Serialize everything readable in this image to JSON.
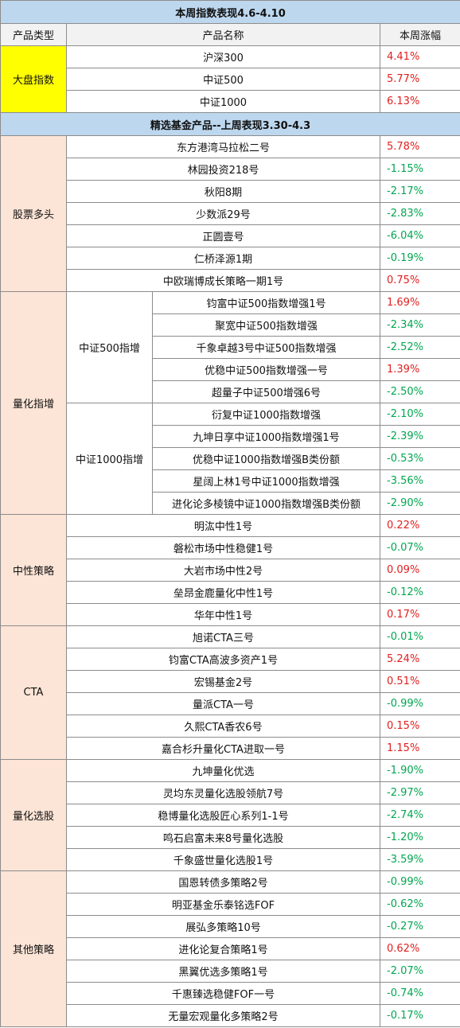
{
  "section1": {
    "title": "本周指数表现4.6-4.10",
    "headers": {
      "type": "产品类型",
      "name": "产品名称",
      "change": "本周涨幅"
    },
    "category": "大盘指数",
    "rows": [
      {
        "name": "沪深300",
        "change": "4.41%",
        "dir": "up"
      },
      {
        "name": "中证500",
        "change": "5.77%",
        "dir": "up"
      },
      {
        "name": "中证1000",
        "change": "6.13%",
        "dir": "up"
      }
    ]
  },
  "section2": {
    "title": "精选基金产品--上周表现3.30-4.3",
    "stock_long": {
      "category": "股票多头",
      "rows": [
        {
          "name": "东方港湾马拉松二号",
          "change": "5.78%",
          "dir": "up"
        },
        {
          "name": "林园投资218号",
          "change": "-1.15%",
          "dir": "down"
        },
        {
          "name": "秋阳8期",
          "change": "-2.17%",
          "dir": "down"
        },
        {
          "name": "少数派29号",
          "change": "-2.83%",
          "dir": "down"
        },
        {
          "name": "正圆壹号",
          "change": "-6.04%",
          "dir": "down"
        },
        {
          "name": "仁桥泽源1期",
          "change": "-0.19%",
          "dir": "down"
        },
        {
          "name": "中欧瑞博成长策略一期1号",
          "change": "0.75%",
          "dir": "up"
        }
      ]
    },
    "quant_index": {
      "category": "量化指增",
      "csi500": {
        "label": "中证500指增",
        "rows": [
          {
            "name": "钧富中证500指数增强1号",
            "change": "1.69%",
            "dir": "up"
          },
          {
            "name": "聚宽中证500指数增强",
            "change": "-2.34%",
            "dir": "down"
          },
          {
            "name": "千象卓越3号中证500指数增强",
            "change": "-2.52%",
            "dir": "down"
          },
          {
            "name": "优稳中证500指数增强一号",
            "change": "1.39%",
            "dir": "up"
          },
          {
            "name": "超量子中证500增强6号",
            "change": "-2.50%",
            "dir": "down"
          }
        ]
      },
      "csi1000": {
        "label": "中证1000指增",
        "rows": [
          {
            "name": "衍复中证1000指数增强",
            "change": "-2.10%",
            "dir": "down"
          },
          {
            "name": "九坤日享中证1000指数增强1号",
            "change": "-2.39%",
            "dir": "down"
          },
          {
            "name": "优稳中证1000指数增强B类份额",
            "change": "-0.53%",
            "dir": "down"
          },
          {
            "name": "星阔上林1号中证1000指数增强",
            "change": "-3.56%",
            "dir": "down"
          },
          {
            "name": "进化论多棱镜中证1000指数增强B类份额",
            "change": "-2.90%",
            "dir": "down"
          }
        ]
      }
    },
    "market_neutral": {
      "category": "中性策略",
      "rows": [
        {
          "name": "明汯中性1号",
          "change": "0.22%",
          "dir": "up"
        },
        {
          "name": "磐松市场中性稳健1号",
          "change": "-0.07%",
          "dir": "down"
        },
        {
          "name": "大岩市场中性2号",
          "change": "0.09%",
          "dir": "up"
        },
        {
          "name": "垒昂金鹿量化中性1号",
          "change": "-0.12%",
          "dir": "down"
        },
        {
          "name": "华年中性1号",
          "change": "0.17%",
          "dir": "up"
        }
      ]
    },
    "cta": {
      "category": "CTA",
      "rows": [
        {
          "name": "旭诺CTA三号",
          "change": "-0.01%",
          "dir": "down"
        },
        {
          "name": "钧富CTA高波多资产1号",
          "change": "5.24%",
          "dir": "up"
        },
        {
          "name": "宏锡基金2号",
          "change": "0.51%",
          "dir": "up"
        },
        {
          "name": "量派CTA一号",
          "change": "-0.99%",
          "dir": "down"
        },
        {
          "name": "久熙CTA香农6号",
          "change": "0.15%",
          "dir": "up"
        },
        {
          "name": "嘉合杉升量化CTA进取一号",
          "change": "1.15%",
          "dir": "up"
        }
      ]
    },
    "quant_select": {
      "category": "量化选股",
      "rows": [
        {
          "name": "九坤量化优选",
          "change": "-1.90%",
          "dir": "down"
        },
        {
          "name": "灵均东灵量化选股领航7号",
          "change": "-2.97%",
          "dir": "down"
        },
        {
          "name": "稳博量化选股匠心系列1-1号",
          "change": "-2.74%",
          "dir": "down"
        },
        {
          "name": "鸣石启富未来8号量化选股",
          "change": "-1.20%",
          "dir": "down"
        },
        {
          "name": "千象盛世量化选股1号",
          "change": "-3.59%",
          "dir": "down"
        }
      ]
    },
    "other": {
      "category": "其他策略",
      "rows": [
        {
          "name": "国恩转债多策略2号",
          "change": "-0.99%",
          "dir": "down"
        },
        {
          "name": "明亚基金乐泰铭选FOF",
          "change": "-0.62%",
          "dir": "down"
        },
        {
          "name": "展弘多策略10号",
          "change": "-0.27%",
          "dir": "down"
        },
        {
          "name": "进化论复合策略1号",
          "change": "0.62%",
          "dir": "up"
        },
        {
          "name": "黑翼优选多策略1号",
          "change": "-2.07%",
          "dir": "down"
        },
        {
          "name": "千惠臻选稳健FOF一号",
          "change": "-0.74%",
          "dir": "down"
        },
        {
          "name": "无量宏观量化多策略2号",
          "change": "-0.17%",
          "dir": "down"
        }
      ]
    }
  },
  "colors": {
    "title_bg": "#bdd7ee",
    "header_bg": "#f2f2f2",
    "index_category_bg": "#ffff00",
    "fund_category_bg": "#fce4d6",
    "positive": "#e02020",
    "negative": "#00a650"
  }
}
